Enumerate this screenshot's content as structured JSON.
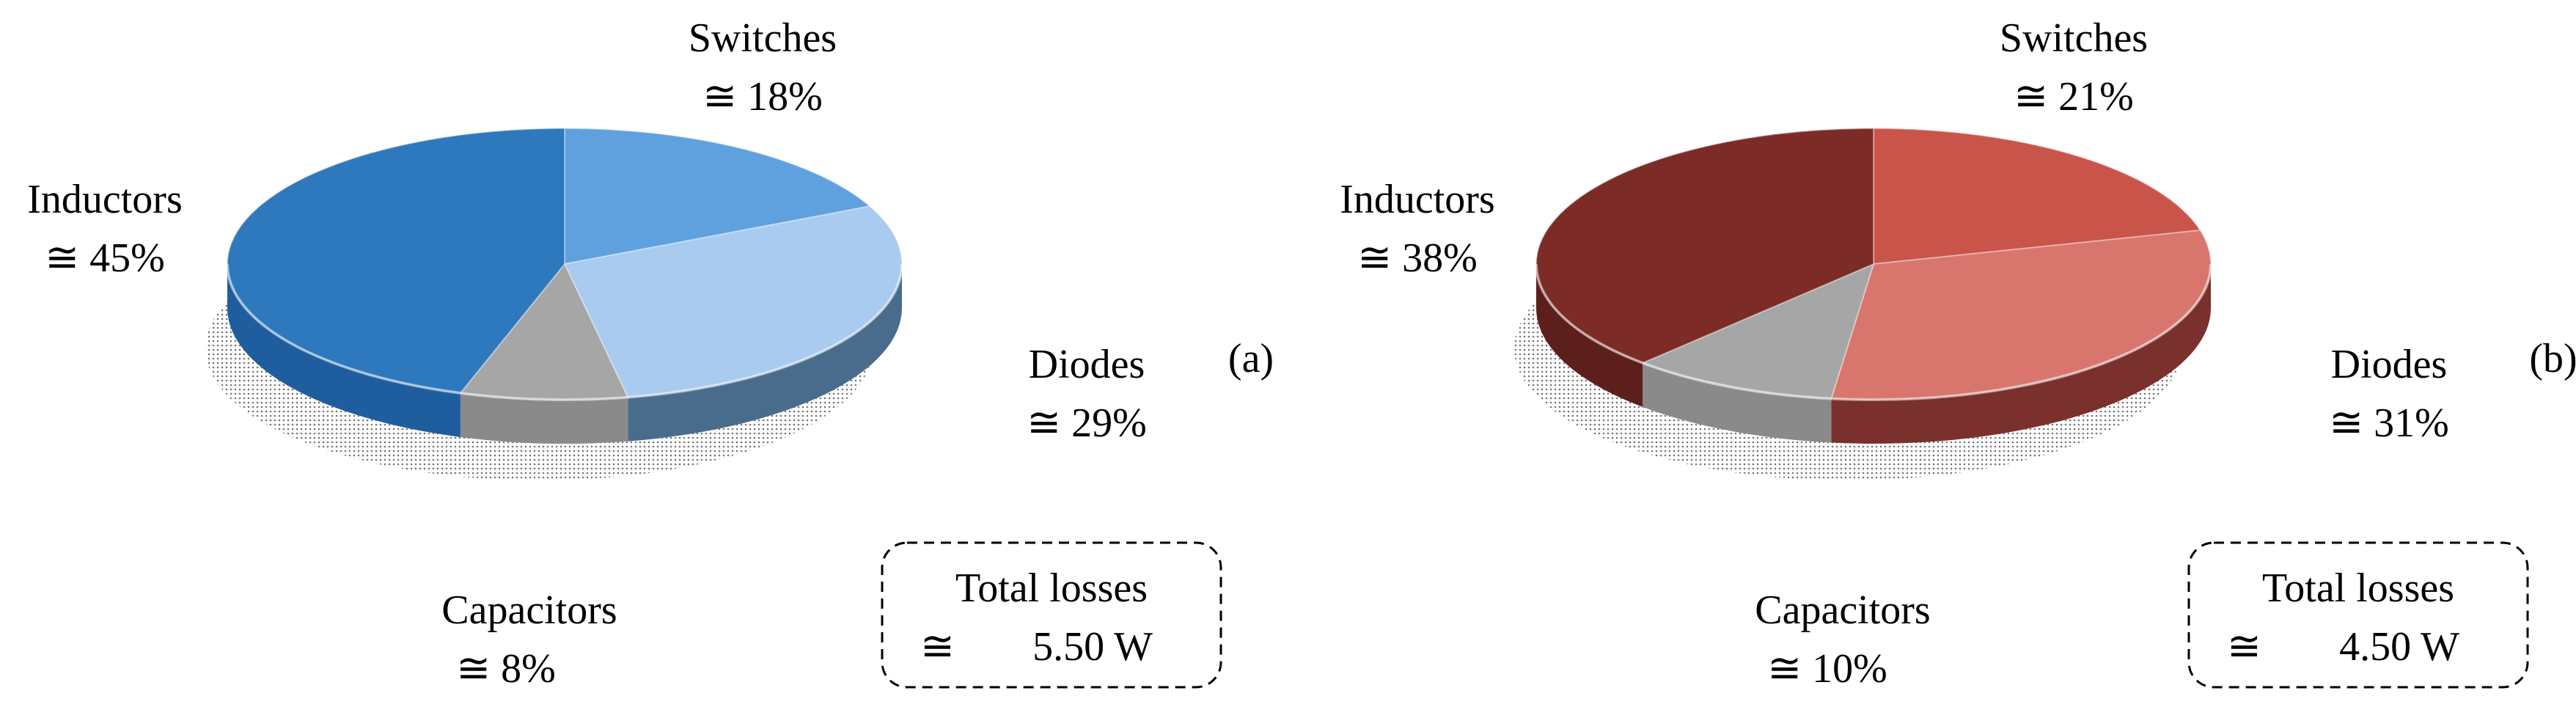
{
  "chart_data": [
    {
      "type": "pie",
      "panel_label": "(a)",
      "slices": [
        {
          "name": "Switches",
          "value": 18,
          "value_text": "≅  18%",
          "color": "#5fa0df",
          "side_color": "#2f6aa8"
        },
        {
          "name": "Diodes",
          "value": 29,
          "value_text": "≅  29%",
          "color": "#a9cbef",
          "side_color": "#4a6c8c"
        },
        {
          "name": "Capacitors",
          "value": 8,
          "value_text": "≅  8%",
          "color": "#a6a6a6",
          "side_color": "#8a8a8a"
        },
        {
          "name": "Inductors",
          "value": 45,
          "value_text": "≅ 45%",
          "color": "#2e78bd",
          "side_color": "#1f5e9e"
        }
      ],
      "total": {
        "label": "Total losses",
        "symbol": "≅",
        "value": "5.50 W"
      }
    },
    {
      "type": "pie",
      "panel_label": "(b)",
      "slices": [
        {
          "name": "Switches",
          "value": 21,
          "value_text": "≅  21%",
          "color": "#c9544a",
          "side_color": "#8c2f29"
        },
        {
          "name": "Diodes",
          "value": 31,
          "value_text": "≅  31%",
          "color": "#d8766d",
          "side_color": "#7a302c"
        },
        {
          "name": "Capacitors",
          "value": 10,
          "value_text": "≅  10%",
          "color": "#a6a6a6",
          "side_color": "#8a8a8a"
        },
        {
          "name": "Inductors",
          "value": 38,
          "value_text": "≅ 38%",
          "color": "#7d2b27",
          "side_color": "#5c1f1c"
        }
      ],
      "total": {
        "label": "Total losses",
        "symbol": "≅",
        "value": "4.50 W"
      }
    }
  ]
}
